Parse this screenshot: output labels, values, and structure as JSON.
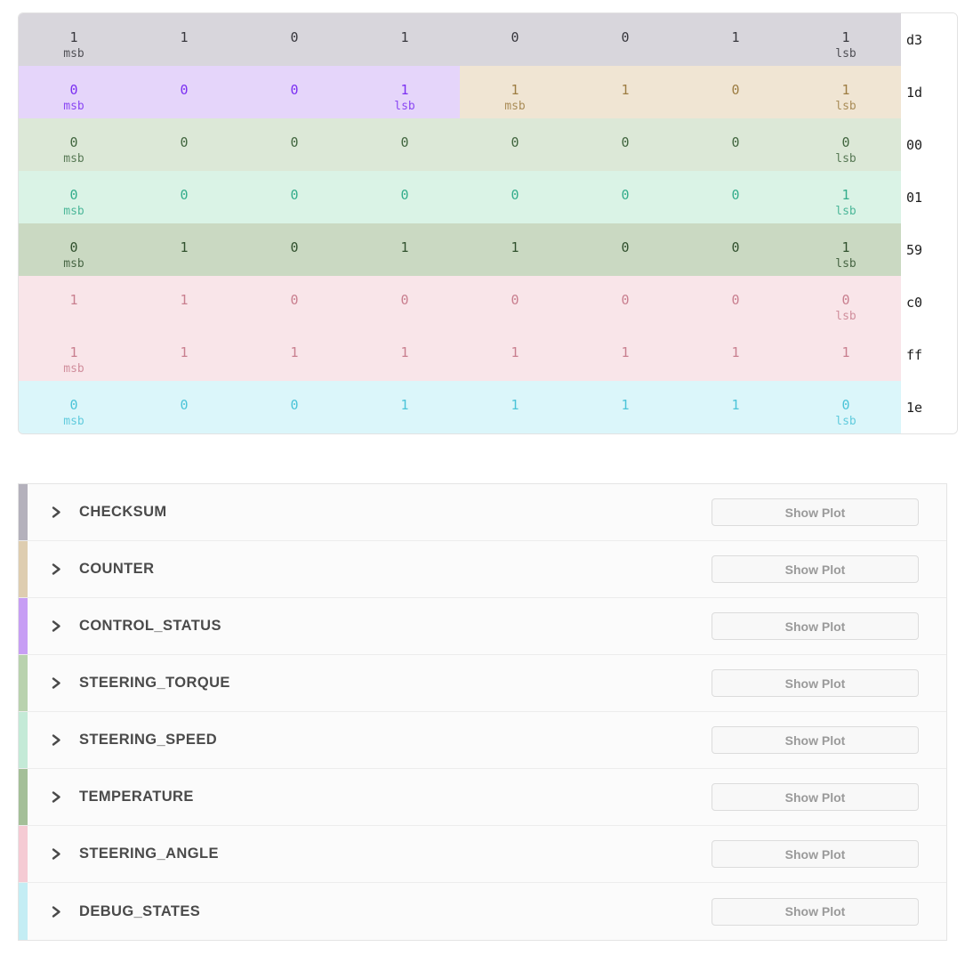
{
  "ui": {
    "show_plot_label": "Show Plot"
  },
  "palette": {
    "checksum": {
      "bg": "#d8d6dc",
      "fg": "#38383e",
      "strip": "#b4b1bc"
    },
    "counter": {
      "bg": "#f0e5d3",
      "fg": "#9d7d42",
      "strip": "#decdb0"
    },
    "control": {
      "bg": "#e5d5fa",
      "fg": "#7b2ff2",
      "strip": "#c79ef4"
    },
    "torque": {
      "bg": "#dce8d7",
      "fg": "#41663f",
      "strip": "#b9d2ae"
    },
    "speed": {
      "bg": "#daf3e6",
      "fg": "#34ad8c",
      "strip": "#c4ead7"
    },
    "temperature": {
      "bg": "#cad9c2",
      "fg": "#31512e",
      "strip": "#a4bf98"
    },
    "angle": {
      "bg": "#f9e5e9",
      "fg": "#c97f8f",
      "strip": "#f5cbd4"
    },
    "debug": {
      "bg": "#dbf6fa",
      "fg": "#4cc4d8",
      "strip": "#c4edf4"
    }
  },
  "bit_table": {
    "rows": [
      {
        "hex": "d3",
        "cells": [
          {
            "bit": "1",
            "label": "msb",
            "sig": "checksum"
          },
          {
            "bit": "1",
            "label": "",
            "sig": "checksum"
          },
          {
            "bit": "0",
            "label": "",
            "sig": "checksum"
          },
          {
            "bit": "1",
            "label": "",
            "sig": "checksum"
          },
          {
            "bit": "0",
            "label": "",
            "sig": "checksum"
          },
          {
            "bit": "0",
            "label": "",
            "sig": "checksum"
          },
          {
            "bit": "1",
            "label": "",
            "sig": "checksum"
          },
          {
            "bit": "1",
            "label": "lsb",
            "sig": "checksum"
          }
        ]
      },
      {
        "hex": "1d",
        "cells": [
          {
            "bit": "0",
            "label": "msb",
            "sig": "control"
          },
          {
            "bit": "0",
            "label": "",
            "sig": "control"
          },
          {
            "bit": "0",
            "label": "",
            "sig": "control"
          },
          {
            "bit": "1",
            "label": "lsb",
            "sig": "control"
          },
          {
            "bit": "1",
            "label": "msb",
            "sig": "counter"
          },
          {
            "bit": "1",
            "label": "",
            "sig": "counter"
          },
          {
            "bit": "0",
            "label": "",
            "sig": "counter"
          },
          {
            "bit": "1",
            "label": "lsb",
            "sig": "counter"
          }
        ]
      },
      {
        "hex": "00",
        "cells": [
          {
            "bit": "0",
            "label": "msb",
            "sig": "torque"
          },
          {
            "bit": "0",
            "label": "",
            "sig": "torque"
          },
          {
            "bit": "0",
            "label": "",
            "sig": "torque"
          },
          {
            "bit": "0",
            "label": "",
            "sig": "torque"
          },
          {
            "bit": "0",
            "label": "",
            "sig": "torque"
          },
          {
            "bit": "0",
            "label": "",
            "sig": "torque"
          },
          {
            "bit": "0",
            "label": "",
            "sig": "torque"
          },
          {
            "bit": "0",
            "label": "lsb",
            "sig": "torque"
          }
        ]
      },
      {
        "hex": "01",
        "cells": [
          {
            "bit": "0",
            "label": "msb",
            "sig": "speed"
          },
          {
            "bit": "0",
            "label": "",
            "sig": "speed"
          },
          {
            "bit": "0",
            "label": "",
            "sig": "speed"
          },
          {
            "bit": "0",
            "label": "",
            "sig": "speed"
          },
          {
            "bit": "0",
            "label": "",
            "sig": "speed"
          },
          {
            "bit": "0",
            "label": "",
            "sig": "speed"
          },
          {
            "bit": "0",
            "label": "",
            "sig": "speed"
          },
          {
            "bit": "1",
            "label": "lsb",
            "sig": "speed"
          }
        ]
      },
      {
        "hex": "59",
        "cells": [
          {
            "bit": "0",
            "label": "msb",
            "sig": "temperature"
          },
          {
            "bit": "1",
            "label": "",
            "sig": "temperature"
          },
          {
            "bit": "0",
            "label": "",
            "sig": "temperature"
          },
          {
            "bit": "1",
            "label": "",
            "sig": "temperature"
          },
          {
            "bit": "1",
            "label": "",
            "sig": "temperature"
          },
          {
            "bit": "0",
            "label": "",
            "sig": "temperature"
          },
          {
            "bit": "0",
            "label": "",
            "sig": "temperature"
          },
          {
            "bit": "1",
            "label": "lsb",
            "sig": "temperature"
          }
        ]
      },
      {
        "hex": "c0",
        "cells": [
          {
            "bit": "1",
            "label": "",
            "sig": "angle"
          },
          {
            "bit": "1",
            "label": "",
            "sig": "angle"
          },
          {
            "bit": "0",
            "label": "",
            "sig": "angle"
          },
          {
            "bit": "0",
            "label": "",
            "sig": "angle"
          },
          {
            "bit": "0",
            "label": "",
            "sig": "angle"
          },
          {
            "bit": "0",
            "label": "",
            "sig": "angle"
          },
          {
            "bit": "0",
            "label": "",
            "sig": "angle"
          },
          {
            "bit": "0",
            "label": "lsb",
            "sig": "angle"
          }
        ]
      },
      {
        "hex": "ff",
        "cells": [
          {
            "bit": "1",
            "label": "msb",
            "sig": "angle"
          },
          {
            "bit": "1",
            "label": "",
            "sig": "angle"
          },
          {
            "bit": "1",
            "label": "",
            "sig": "angle"
          },
          {
            "bit": "1",
            "label": "",
            "sig": "angle"
          },
          {
            "bit": "1",
            "label": "",
            "sig": "angle"
          },
          {
            "bit": "1",
            "label": "",
            "sig": "angle"
          },
          {
            "bit": "1",
            "label": "",
            "sig": "angle"
          },
          {
            "bit": "1",
            "label": "",
            "sig": "angle"
          }
        ]
      },
      {
        "hex": "1e",
        "cells": [
          {
            "bit": "0",
            "label": "msb",
            "sig": "debug"
          },
          {
            "bit": "0",
            "label": "",
            "sig": "debug"
          },
          {
            "bit": "0",
            "label": "",
            "sig": "debug"
          },
          {
            "bit": "1",
            "label": "",
            "sig": "debug"
          },
          {
            "bit": "1",
            "label": "",
            "sig": "debug"
          },
          {
            "bit": "1",
            "label": "",
            "sig": "debug"
          },
          {
            "bit": "1",
            "label": "",
            "sig": "debug"
          },
          {
            "bit": "0",
            "label": "lsb",
            "sig": "debug"
          }
        ]
      }
    ]
  },
  "signals": [
    {
      "name": "CHECKSUM",
      "sig": "checksum"
    },
    {
      "name": "COUNTER",
      "sig": "counter"
    },
    {
      "name": "CONTROL_STATUS",
      "sig": "control"
    },
    {
      "name": "STEERING_TORQUE",
      "sig": "torque"
    },
    {
      "name": "STEERING_SPEED",
      "sig": "speed"
    },
    {
      "name": "TEMPERATURE",
      "sig": "temperature"
    },
    {
      "name": "STEERING_ANGLE",
      "sig": "angle"
    },
    {
      "name": "DEBUG_STATES",
      "sig": "debug"
    }
  ]
}
